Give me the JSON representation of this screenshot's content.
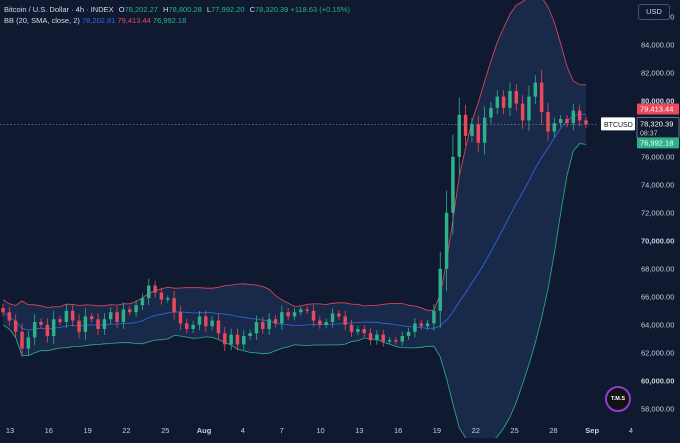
{
  "legend": {
    "symbol": "Bitcoin / U.S. Dollar · 4h · INDEX",
    "open_key": "O",
    "open": "78,202.27",
    "high_key": "H",
    "high": "78,800.28",
    "low_key": "L",
    "low": "77,992.20",
    "close_key": "C",
    "close": "78,320.39",
    "change": "+118.63 (+0.15%)",
    "indicator": "BB (20, SMA, close, 2)",
    "basis": "78,202.81",
    "upper": "79,413.44",
    "lower": "76,992.18"
  },
  "toolbar": {
    "currency_label": "USD"
  },
  "price_scale": {
    "labels": [
      "86,000.00",
      "84,000.00",
      "82,000.00",
      "80,000.00",
      "78,000.00",
      "76,000.00",
      "74,000.00",
      "72,000.00",
      "70,000.00",
      "68,000.00",
      "66,000.00",
      "64,000.00",
      "62,000.00",
      "60,000.00",
      "58,000.00"
    ],
    "bold_labels": [
      "80,000.00",
      "70,000.00",
      "60,000.00"
    ],
    "upper_tag": "79,413.44",
    "lower_tag": "76,992.18",
    "price_tag_symbol": "BTCUSD",
    "price_tag_value": "78,320.39",
    "countdown": "08:37"
  },
  "time_scale": {
    "labels": [
      "13",
      "16",
      "19",
      "22",
      "25",
      "Aug",
      "4",
      "7",
      "10",
      "13",
      "16",
      "19",
      "22",
      "25",
      "28",
      "Sep",
      "4"
    ],
    "bold_labels": [
      "Aug",
      "Sep"
    ]
  },
  "logo_text": "T.M.S",
  "colors": {
    "background": "#0f1a30",
    "up": "#2fb08a",
    "down": "#e8495b",
    "basis": "#2f6be6",
    "band_fill": "#1b2d4e"
  },
  "chart_data": {
    "type": "candlestick",
    "title": "",
    "xlabel": "",
    "ylabel": "",
    "ylim": [
      57200,
      87200
    ],
    "y_ticks": [
      58000,
      60000,
      62000,
      64000,
      66000,
      68000,
      70000,
      72000,
      74000,
      76000,
      78000,
      80000,
      82000,
      84000,
      86000
    ],
    "current_price": 78320.39,
    "bollinger_last": {
      "basis": 78202.81,
      "upper": 79413.44,
      "lower": 76992.18
    },
    "close_series": [
      64900,
      64300,
      63500,
      62300,
      63100,
      64200,
      64000,
      63200,
      64400,
      64200,
      65000,
      64300,
      63500,
      64600,
      64400,
      63700,
      64400,
      64900,
      64200,
      65100,
      64900,
      65400,
      65900,
      66800,
      66300,
      65800,
      65900,
      64900,
      64100,
      63700,
      64000,
      64600,
      63900,
      64300,
      63400,
      62600,
      63300,
      62600,
      63200,
      63400,
      64200,
      63700,
      64400,
      64100,
      64900,
      64600,
      64900,
      65100,
      65000,
      64300,
      64000,
      64200,
      64800,
      64600,
      64000,
      63500,
      63700,
      63400,
      62900,
      63300,
      62800,
      62900,
      62800,
      63200,
      63500,
      64100,
      63900,
      64100,
      65000,
      68000,
      72000,
      76000,
      79000,
      77500,
      78300,
      77000,
      78800,
      79500,
      80300,
      79500,
      80700,
      79800,
      78600,
      80300,
      81300,
      79200,
      77800,
      78400,
      78700,
      78400,
      79300,
      78600,
      78320
    ]
  }
}
